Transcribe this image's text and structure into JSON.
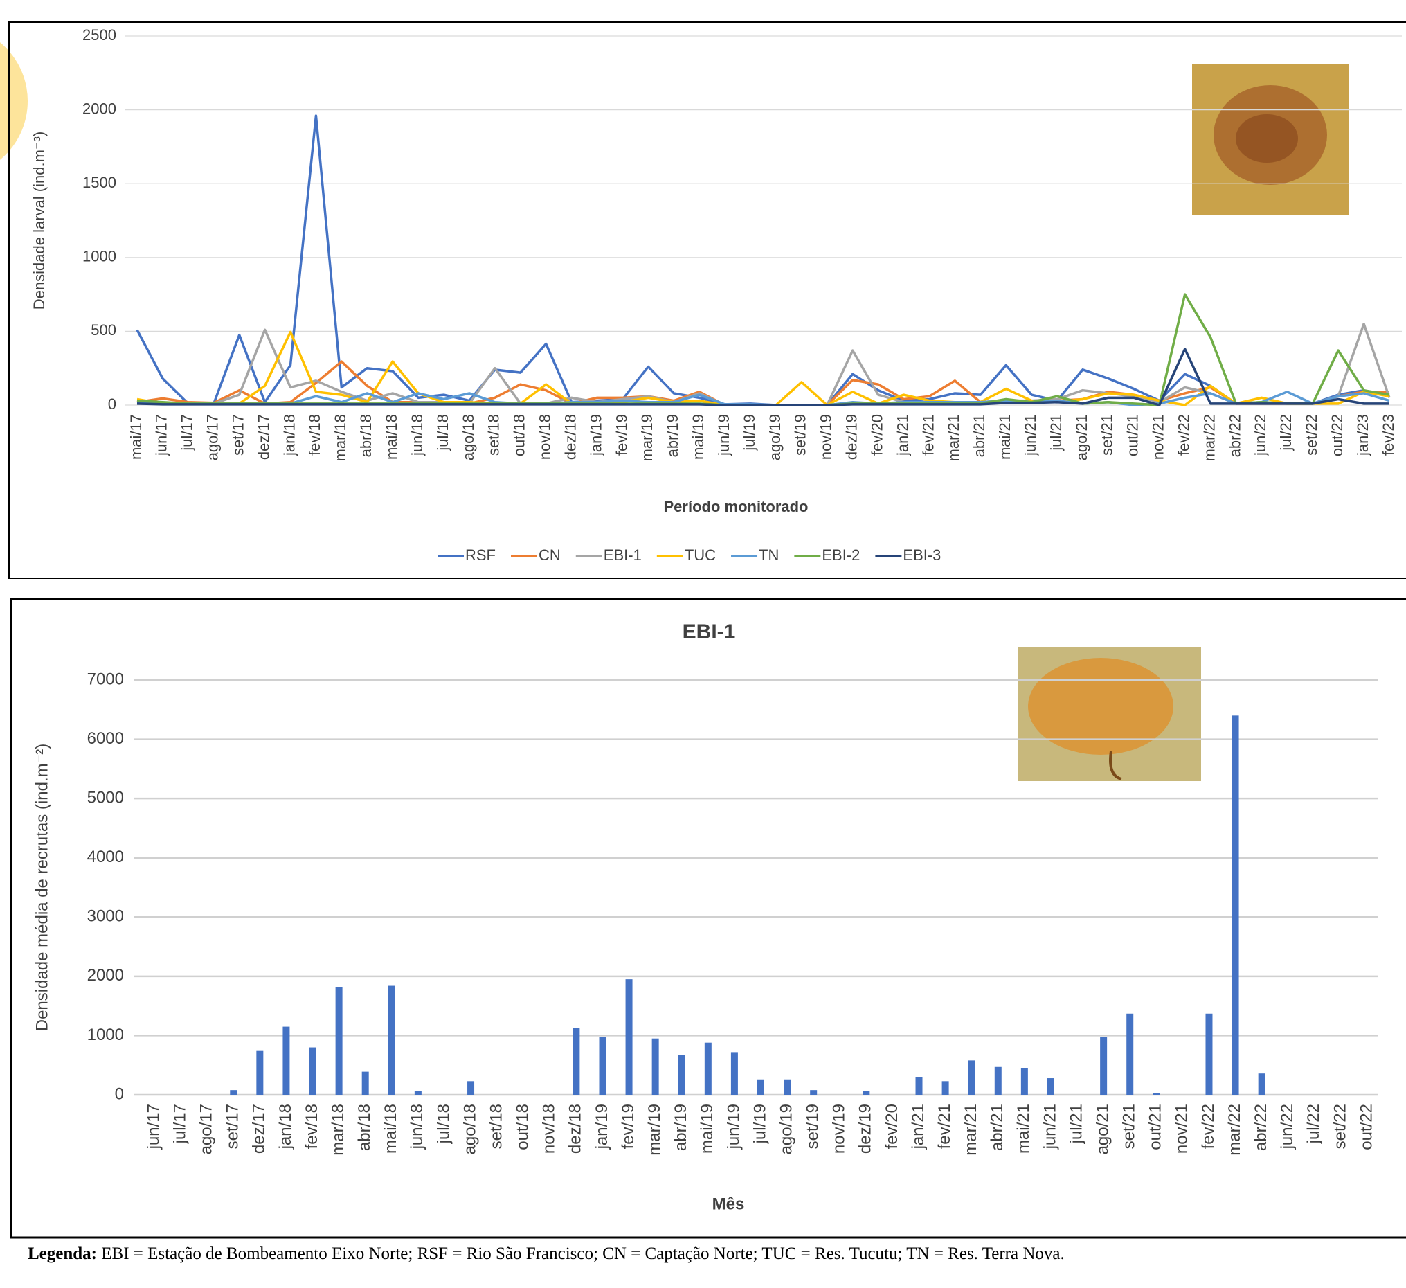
{
  "chart_data": [
    {
      "type": "line",
      "y_label": "Densidade larval (ind.m⁻³)",
      "x_label": "Período monitorado",
      "categories": [
        "mai/17",
        "jun/17",
        "jul/17",
        "ago/17",
        "set/17",
        "dez/17",
        "jan/18",
        "fev/18",
        "mar/18",
        "abr/18",
        "mai/18",
        "jun/18",
        "jul/18",
        "ago/18",
        "set/18",
        "out/18",
        "nov/18",
        "dez/18",
        "jan/19",
        "fev/19",
        "mar/19",
        "abr/19",
        "mai/19",
        "jun/19",
        "jul/19",
        "ago/19",
        "set/19",
        "nov/19",
        "dez/19",
        "fev/20",
        "jan/21",
        "fev/21",
        "mar/21",
        "abr/21",
        "mai/21",
        "jun/21",
        "jul/21",
        "ago/21",
        "set/21",
        "out/21",
        "nov/21",
        "fev/22",
        "mar/22",
        "abr/22",
        "jun/22",
        "jul/22",
        "set/22",
        "out/22",
        "jan/23",
        "fev/23"
      ],
      "series": [
        {
          "name": "RSF",
          "color": "#4472c4",
          "values": [
            510,
            180,
            10,
            10,
            475,
            20,
            270,
            1960,
            120,
            250,
            230,
            50,
            70,
            30,
            240,
            220,
            415,
            20,
            30,
            40,
            260,
            80,
            50,
            5,
            10,
            0,
            0,
            0,
            210,
            100,
            30,
            40,
            80,
            70,
            270,
            70,
            30,
            240,
            180,
            110,
            30,
            210,
            130,
            10,
            10,
            10,
            10,
            70,
            100,
            60
          ]
        },
        {
          "name": "CN",
          "color": "#ed7d31",
          "values": [
            20,
            45,
            20,
            15,
            100,
            10,
            20,
            150,
            295,
            130,
            20,
            20,
            20,
            10,
            50,
            140,
            100,
            10,
            50,
            50,
            60,
            30,
            90,
            0,
            0,
            0,
            0,
            0,
            170,
            140,
            40,
            60,
            165,
            20,
            30,
            20,
            30,
            40,
            90,
            70,
            30,
            80,
            120,
            10,
            10,
            10,
            10,
            60,
            90,
            90
          ]
        },
        {
          "name": "EBI-1",
          "color": "#a5a5a5",
          "values": [
            10,
            10,
            10,
            10,
            70,
            510,
            120,
            165,
            90,
            30,
            80,
            20,
            20,
            10,
            250,
            10,
            10,
            50,
            20,
            40,
            60,
            20,
            80,
            0,
            0,
            0,
            0,
            0,
            370,
            70,
            20,
            20,
            20,
            20,
            30,
            30,
            40,
            100,
            80,
            60,
            20,
            120,
            80,
            10,
            20,
            10,
            10,
            60,
            550,
            50
          ]
        },
        {
          "name": "TUC",
          "color": "#ffc000",
          "values": [
            40,
            10,
            10,
            10,
            10,
            130,
            495,
            90,
            70,
            20,
            295,
            80,
            20,
            20,
            10,
            10,
            140,
            10,
            20,
            20,
            50,
            20,
            30,
            0,
            0,
            0,
            155,
            0,
            90,
            10,
            70,
            30,
            20,
            20,
            110,
            30,
            20,
            40,
            80,
            70,
            30,
            0,
            130,
            10,
            50,
            10,
            10,
            10,
            90,
            60
          ]
        },
        {
          "name": "TN",
          "color": "#5b9bd5",
          "values": [
            20,
            10,
            10,
            10,
            10,
            10,
            10,
            60,
            20,
            80,
            20,
            80,
            40,
            80,
            20,
            10,
            10,
            20,
            20,
            30,
            20,
            20,
            70,
            5,
            5,
            0,
            0,
            0,
            20,
            10,
            20,
            20,
            20,
            20,
            30,
            20,
            30,
            10,
            20,
            0,
            10,
            50,
            80,
            10,
            20,
            90,
            10,
            60,
            80,
            30
          ]
        },
        {
          "name": "EBI-2",
          "color": "#70ad47",
          "values": [
            30,
            20,
            10,
            10,
            10,
            10,
            10,
            10,
            10,
            10,
            10,
            10,
            10,
            10,
            10,
            10,
            10,
            10,
            10,
            10,
            10,
            10,
            10,
            0,
            0,
            0,
            0,
            0,
            10,
            10,
            10,
            10,
            10,
            10,
            40,
            20,
            60,
            10,
            20,
            10,
            0,
            750,
            460,
            10,
            20,
            10,
            10,
            370,
            100,
            70
          ]
        },
        {
          "name": "EBI-3",
          "color": "#264478",
          "values": [
            10,
            5,
            5,
            5,
            5,
            5,
            5,
            5,
            5,
            5,
            5,
            5,
            5,
            5,
            5,
            5,
            5,
            5,
            5,
            5,
            5,
            5,
            5,
            0,
            0,
            0,
            0,
            0,
            5,
            5,
            5,
            5,
            5,
            5,
            15,
            15,
            20,
            10,
            50,
            50,
            0,
            380,
            10,
            10,
            10,
            10,
            10,
            40,
            10,
            10
          ]
        }
      ],
      "ylim": [
        0,
        2500
      ],
      "yticks": [
        0,
        500,
        1000,
        1500,
        2000,
        2500
      ],
      "grid": true,
      "legend": "bottom"
    },
    {
      "type": "bar",
      "title": "EBI-1",
      "y_label": "Densidade média de recrutas (ind.m⁻²)",
      "x_label": "Mês",
      "categories": [
        "jun/17",
        "jul/17",
        "ago/17",
        "set/17",
        "dez/17",
        "jan/18",
        "fev/18",
        "mar/18",
        "abr/18",
        "mai/18",
        "jun/18",
        "jul/18",
        "ago/18",
        "set/18",
        "out/18",
        "nov/18",
        "dez/18",
        "jan/19",
        "fev/19",
        "mar/19",
        "abr/19",
        "mai/19",
        "jun/19",
        "jul/19",
        "ago/19",
        "set/19",
        "nov/19",
        "dez/19",
        "fev/20",
        "jan/21",
        "fev/21",
        "mar/21",
        "abr/21",
        "mai/21",
        "jun/21",
        "jul/21",
        "ago/21",
        "set/21",
        "out/21",
        "nov/21",
        "fev/22",
        "mar/22",
        "abr/22",
        "jun/22",
        "jul/22",
        "set/22",
        "out/22"
      ],
      "values": [
        0,
        0,
        0,
        80,
        740,
        1150,
        800,
        1820,
        390,
        1840,
        60,
        0,
        230,
        0,
        0,
        0,
        1130,
        980,
        1950,
        950,
        670,
        880,
        720,
        260,
        260,
        80,
        0,
        60,
        0,
        300,
        230,
        580,
        470,
        450,
        280,
        0,
        970,
        1370,
        30,
        0,
        1370,
        6400,
        360,
        0,
        0,
        0,
        0
      ],
      "color": "#4472c4",
      "ylim": [
        0,
        7000
      ],
      "yticks": [
        0,
        1000,
        2000,
        3000,
        4000,
        5000,
        6000,
        7000
      ],
      "grid": true
    }
  ],
  "legend_note": {
    "label": "Legenda:",
    "text": "EBI = Estação de Bombeamento Eixo Norte; RSF = Rio São Francisco; CN = Captação Norte; TUC = Res. Tucutu; TN = Res. Terra Nova."
  }
}
